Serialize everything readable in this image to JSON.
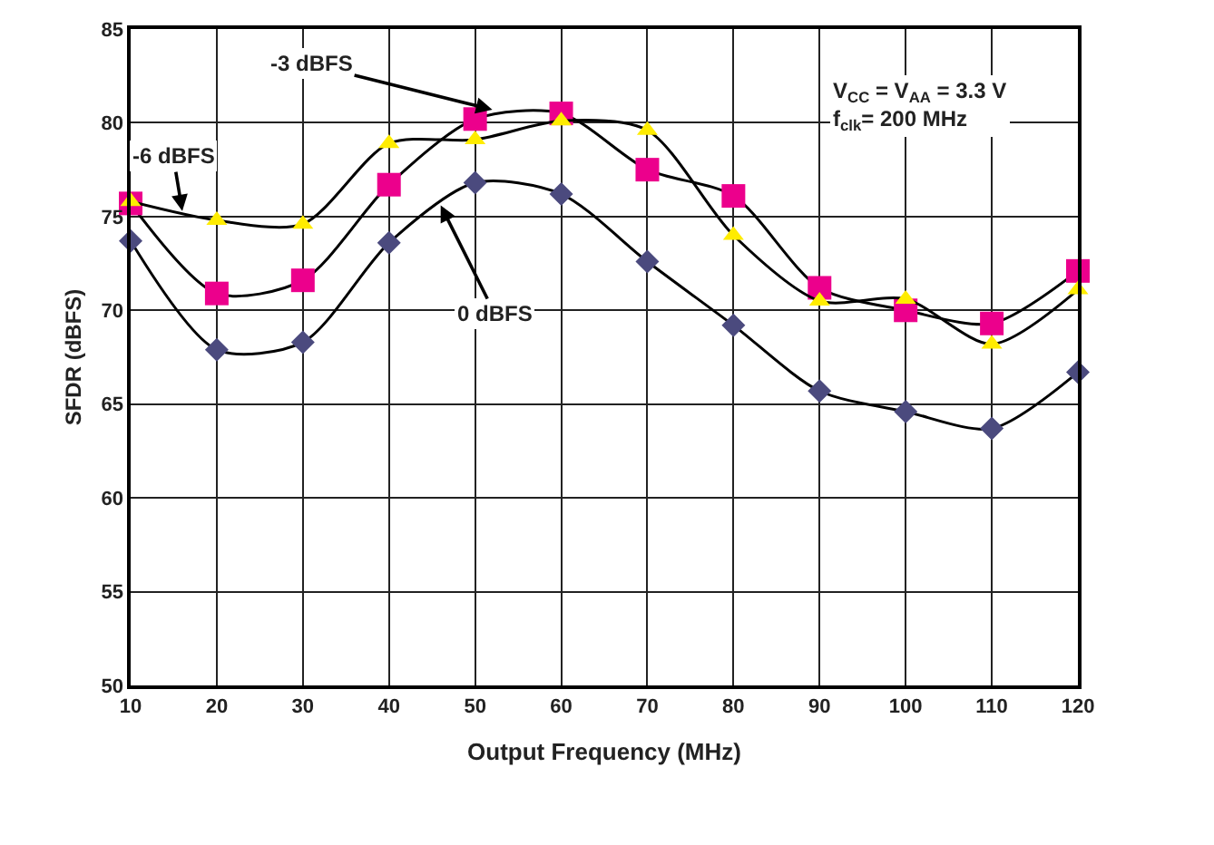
{
  "chart_data": {
    "type": "line",
    "xlabel": "Output Frequency (MHz)",
    "ylabel": "SFDR (dBFS)",
    "x": [
      10,
      20,
      30,
      40,
      50,
      60,
      70,
      80,
      90,
      100,
      110,
      120
    ],
    "series": [
      {
        "color": "#4b4a7e",
        "marker": "diamond",
        "values": [
          73.7,
          67.9,
          68.3,
          73.6,
          76.8,
          76.2,
          72.6,
          69.2,
          65.7,
          64.6,
          63.7,
          66.7
        ]
      },
      {
        "color": "#ec008c",
        "marker": "square",
        "values": [
          75.7,
          70.9,
          71.6,
          76.7,
          80.2,
          80.5,
          77.5,
          76.1,
          71.2,
          70.0,
          69.3,
          72.1
        ]
      },
      {
        "color": "#ffec00",
        "marker": "triangle",
        "values": [
          75.8,
          74.8,
          74.6,
          78.9,
          79.1,
          80.1,
          79.6,
          74.0,
          70.5,
          70.6,
          68.2,
          71.1
        ]
      }
    ],
    "xlim": [
      10,
      120
    ],
    "xticks": [
      10,
      20,
      30,
      40,
      50,
      60,
      70,
      80,
      90,
      100,
      110,
      120
    ],
    "ylim": [
      50,
      85
    ],
    "yticks": [
      50,
      55,
      60,
      65,
      70,
      75,
      80,
      85
    ],
    "grid": true,
    "line_style": "solid",
    "annotations": [
      {
        "text": "-3 dBFS",
        "x": 52,
        "y": 80.7
      },
      {
        "text": "-6 dBFS",
        "x": 16,
        "y": 75.3
      },
      {
        "text": "0 dBFS",
        "x": 46,
        "y": 75.6
      },
      "V$_{CC}$ = V$_{AA}$ = 3.3 V",
      "f$_{clk}$= 200 MHz"
    ]
  }
}
